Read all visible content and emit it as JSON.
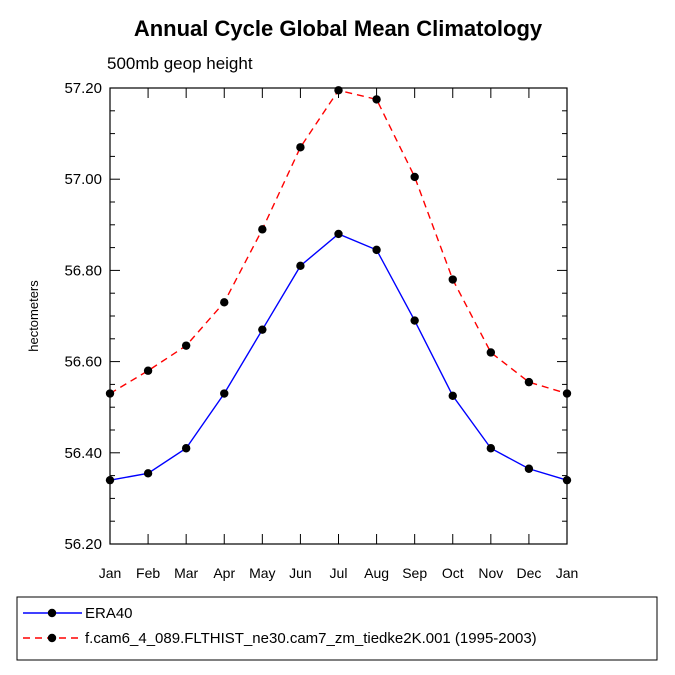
{
  "chart_data": {
    "type": "line",
    "title": "Annual Cycle Global Mean Climatology",
    "subtitle": "500mb geop height",
    "ylabel": "hectometers",
    "xlabel": "",
    "ylim": [
      56.2,
      57.2
    ],
    "yticks": [
      "56.20",
      "56.40",
      "56.60",
      "56.80",
      "57.00",
      "57.20"
    ],
    "yticks_values": [
      56.2,
      56.4,
      56.6,
      56.8,
      57.0,
      57.2
    ],
    "categories": [
      "Jan",
      "Feb",
      "Mar",
      "Apr",
      "May",
      "Jun",
      "Jul",
      "Aug",
      "Sep",
      "Oct",
      "Nov",
      "Dec",
      "Jan"
    ],
    "grid": false,
    "legend_position": "bottom",
    "series": [
      {
        "name": "ERA40",
        "color": "#0000ff",
        "dash": "solid",
        "values": [
          56.34,
          56.355,
          56.41,
          56.53,
          56.67,
          56.81,
          56.88,
          56.845,
          56.69,
          56.525,
          56.41,
          56.365,
          56.34
        ]
      },
      {
        "name": "f.cam6_4_089.FLTHIST_ne30.cam7_zm_tiedke2K.001 (1995-2003)",
        "color": "#ff0000",
        "dash": "dashed",
        "values": [
          56.53,
          56.58,
          56.635,
          56.73,
          56.89,
          57.07,
          57.195,
          57.175,
          57.005,
          56.78,
          56.62,
          56.555,
          56.53
        ]
      }
    ]
  }
}
